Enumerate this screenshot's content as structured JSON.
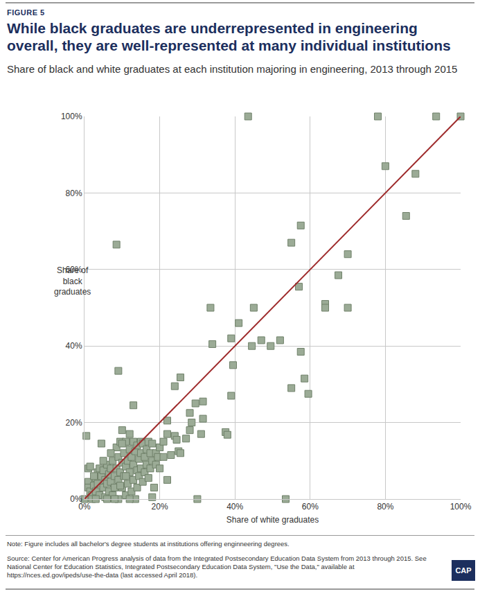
{
  "chart_data": {
    "type": "scatter",
    "figure_label": "FIGURE 5",
    "title": "While black graduates are underrepresented in engineering overall, they are well-represented at many individual institutions",
    "subtitle": "Share of black and white graduates at each institution majoring in engineering, 2013 through 2015",
    "xlabel": "Share of white graduates",
    "ylabel": [
      "Share of",
      "black",
      "graduates"
    ],
    "note": "Note: Figure includes all bachelor's degree students at institutions offering enginneering degrees.",
    "source": "Source: Center for American Progress analysis of data from the Integrated Postsecondary Education Data System from 2013 through 2015. See National Center for Education Statistics, Integrated Postsecondary Education Data System, \"Use the Data,\" available at https://nces.ed.gov/ipeds/use-the-data (last accessed April 2018).",
    "logo": "CAP",
    "xlim": [
      0,
      100
    ],
    "ylim": [
      0,
      100
    ],
    "xticks": [
      {
        "value": 0,
        "label": "0%"
      },
      {
        "value": 20,
        "label": "20%"
      },
      {
        "value": 40,
        "label": "40%"
      },
      {
        "value": 60,
        "label": "60%"
      },
      {
        "value": 80,
        "label": "80%"
      },
      {
        "value": 100,
        "label": "100%"
      }
    ],
    "yticks": [
      {
        "value": 0,
        "label": "0%"
      },
      {
        "value": 20,
        "label": "20%"
      },
      {
        "value": 40,
        "label": "40%"
      },
      {
        "value": 60,
        "label": "60%"
      },
      {
        "value": 80,
        "label": "80%"
      },
      {
        "value": 100,
        "label": "100%"
      }
    ],
    "grid": true,
    "series": [
      {
        "type": "scatter",
        "marker": "square",
        "color": "#9bab96",
        "x": [
          43.5,
          78,
          93.5,
          100,
          80,
          88,
          85.5,
          57.5,
          55,
          8.5,
          70,
          67.5,
          57,
          64,
          64,
          70,
          45,
          33.5,
          41,
          52,
          47,
          39,
          34,
          44.5,
          49.5,
          39.5,
          9,
          57.5,
          58.5,
          59.5,
          55,
          25.5,
          24,
          39,
          31.5,
          29.5,
          28,
          22,
          28.5,
          31.5,
          37.5,
          38,
          31,
          22,
          24,
          24.5,
          27,
          28,
          25,
          23,
          25.5,
          20,
          13,
          10,
          0.5,
          4.5,
          22,
          18,
          30,
          53.5,
          0,
          1,
          1,
          1.5,
          1,
          1.5,
          2,
          2,
          2.5,
          3,
          3,
          3.5,
          3.5,
          4,
          4,
          4.5,
          5,
          5,
          5.5,
          5.5,
          6,
          6,
          6.5,
          6.5,
          7,
          7,
          7.5,
          7.5,
          8,
          8,
          8.5,
          8.5,
          9,
          9,
          9,
          9.5,
          9.5,
          10,
          10,
          10.5,
          10.5,
          11,
          11,
          11,
          11.5,
          11.5,
          12,
          12,
          12,
          12.5,
          12.5,
          13,
          13,
          13,
          13.5,
          13.5,
          14,
          14,
          14,
          14.5,
          14.5,
          15,
          15,
          15,
          15.5,
          15.5,
          16,
          16,
          16.5,
          16.5,
          17,
          17,
          17.5,
          17.5,
          18,
          18,
          18.5,
          19,
          19,
          19.5,
          20,
          20,
          21,
          21,
          9.5,
          10,
          12,
          8,
          6,
          3,
          11,
          7,
          5,
          2.5
        ],
        "values": [
          100,
          100,
          100,
          100,
          87,
          85,
          74,
          71.5,
          67,
          66.5,
          64,
          58.5,
          55.5,
          51,
          50,
          50,
          50,
          50,
          46,
          41.5,
          41.5,
          42,
          40.5,
          40,
          40,
          35,
          33.5,
          38.5,
          31.5,
          27.5,
          29,
          31.8,
          29.5,
          27,
          25.5,
          25,
          22.5,
          20.5,
          20,
          21,
          17.5,
          16.8,
          17,
          17,
          16.5,
          15.5,
          15.8,
          18,
          12.5,
          11.5,
          12,
          13.5,
          24.5,
          18,
          16.5,
          14.5,
          5,
          0.5,
          0,
          0,
          0,
          4.5,
          3,
          2,
          8,
          8.5,
          1,
          0,
          3.5,
          5.5,
          2,
          7,
          4,
          8,
          1,
          6,
          3,
          7.5,
          5,
          0.5,
          4,
          9,
          6.5,
          2,
          8,
          4.5,
          10,
          1,
          6,
          3,
          13.5,
          8,
          11,
          5,
          0,
          15,
          7,
          9.5,
          3,
          12,
          6,
          15,
          8.5,
          1,
          10,
          4,
          17,
          13,
          7,
          11,
          2,
          15,
          9,
          5,
          12.5,
          0,
          14,
          7.5,
          3,
          10.5,
          6,
          15,
          12,
          8,
          14.5,
          4.5,
          11,
          7,
          13,
          9,
          15,
          5.5,
          12,
          8,
          14.5,
          10,
          3,
          12,
          9,
          11,
          13.5,
          8,
          11,
          15,
          3.5,
          14.5,
          0,
          0,
          0,
          0,
          6,
          12,
          10,
          6
        ]
      },
      {
        "type": "line",
        "color": "#9e2a2b",
        "x": [
          0,
          100
        ],
        "values": [
          0,
          100
        ]
      }
    ]
  }
}
